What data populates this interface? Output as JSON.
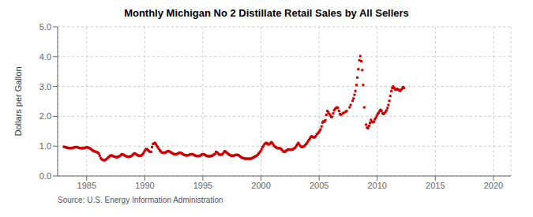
{
  "chart_data": {
    "type": "scatter",
    "title": "Monthly Michigan No 2 Distillate Retail Sales by All Sellers",
    "ylabel": "Dollars per Gallon",
    "annotations": [
      "Source: U.S. Energy Information Administration"
    ],
    "color": "#cc0000",
    "marker": "square",
    "grid": true,
    "xlim": [
      1982.5,
      2021.5
    ],
    "ylim": [
      0.0,
      5.0
    ],
    "xticks": [
      1985,
      1990,
      1995,
      2000,
      2005,
      2010,
      2015,
      2020
    ],
    "yticks": [
      {
        "value": 0.0,
        "label": "0.0"
      },
      {
        "value": 1.0,
        "label": "1.0"
      },
      {
        "value": 2.0,
        "label": "2.0"
      },
      {
        "value": 3.0,
        "label": "3.0"
      },
      {
        "value": 4.0,
        "label": "4.0"
      },
      {
        "value": 5.0,
        "label": "5.0"
      }
    ],
    "x": [
      1983.04,
      1983.12,
      1983.21,
      1983.29,
      1983.37,
      1983.46,
      1983.54,
      1983.62,
      1983.71,
      1983.79,
      1983.88,
      1983.96,
      1984.04,
      1984.12,
      1984.21,
      1984.29,
      1984.37,
      1984.46,
      1984.54,
      1984.62,
      1984.71,
      1984.79,
      1984.88,
      1984.96,
      1985.04,
      1985.12,
      1985.21,
      1985.29,
      1985.37,
      1985.46,
      1985.54,
      1985.62,
      1985.71,
      1985.79,
      1985.88,
      1985.96,
      1986.04,
      1986.12,
      1986.21,
      1986.29,
      1986.37,
      1986.46,
      1986.54,
      1986.62,
      1986.71,
      1986.79,
      1986.88,
      1986.96,
      1987.04,
      1987.12,
      1987.21,
      1987.29,
      1987.37,
      1987.46,
      1987.54,
      1987.62,
      1987.71,
      1987.79,
      1987.88,
      1987.96,
      1988.04,
      1988.12,
      1988.21,
      1988.29,
      1988.37,
      1988.46,
      1988.54,
      1988.62,
      1988.71,
      1988.79,
      1988.88,
      1988.96,
      1989.04,
      1989.12,
      1989.21,
      1989.29,
      1989.37,
      1989.46,
      1989.54,
      1989.62,
      1989.71,
      1989.79,
      1989.88,
      1989.96,
      1990.04,
      1990.12,
      1990.21,
      1990.29,
      1990.37,
      1990.46,
      1990.54,
      1990.62,
      1990.71,
      1990.79,
      1990.88,
      1990.96,
      1991.04,
      1991.12,
      1991.21,
      1991.29,
      1991.37,
      1991.46,
      1991.54,
      1991.62,
      1991.71,
      1991.79,
      1991.88,
      1991.96,
      1992.04,
      1992.12,
      1992.21,
      1992.29,
      1992.37,
      1992.46,
      1992.54,
      1992.62,
      1992.71,
      1992.79,
      1992.88,
      1992.96,
      1993.04,
      1993.12,
      1993.21,
      1993.29,
      1993.37,
      1993.46,
      1993.54,
      1993.62,
      1993.71,
      1993.79,
      1993.88,
      1993.96,
      1994.04,
      1994.12,
      1994.21,
      1994.29,
      1994.37,
      1994.46,
      1994.54,
      1994.62,
      1994.71,
      1994.79,
      1994.88,
      1994.96,
      1995.04,
      1995.12,
      1995.21,
      1995.29,
      1995.37,
      1995.46,
      1995.54,
      1995.62,
      1995.71,
      1995.79,
      1995.88,
      1995.96,
      1996.04,
      1996.12,
      1996.21,
      1996.29,
      1996.37,
      1996.46,
      1996.54,
      1996.62,
      1996.71,
      1996.79,
      1996.88,
      1996.96,
      1997.04,
      1997.12,
      1997.21,
      1997.29,
      1997.37,
      1997.46,
      1997.54,
      1997.62,
      1997.71,
      1997.79,
      1997.88,
      1997.96,
      1998.04,
      1998.12,
      1998.21,
      1998.29,
      1998.37,
      1998.46,
      1998.54,
      1998.62,
      1998.71,
      1998.79,
      1998.88,
      1998.96,
      1999.04,
      1999.12,
      1999.21,
      1999.29,
      1999.37,
      1999.46,
      1999.54,
      1999.62,
      1999.71,
      1999.79,
      1999.88,
      1999.96,
      2000.04,
      2000.12,
      2000.21,
      2000.29,
      2000.37,
      2000.46,
      2000.54,
      2000.62,
      2000.71,
      2000.79,
      2000.88,
      2000.96,
      2001.04,
      2001.12,
      2001.21,
      2001.29,
      2001.37,
      2001.46,
      2001.54,
      2001.62,
      2001.71,
      2001.79,
      2001.88,
      2001.96,
      2002.04,
      2002.12,
      2002.21,
      2002.29,
      2002.37,
      2002.46,
      2002.54,
      2002.62,
      2002.71,
      2002.79,
      2002.88,
      2002.96,
      2003.04,
      2003.12,
      2003.21,
      2003.29,
      2003.37,
      2003.46,
      2003.54,
      2003.62,
      2003.71,
      2003.79,
      2003.88,
      2003.96,
      2004.04,
      2004.12,
      2004.21,
      2004.29,
      2004.37,
      2004.46,
      2004.54,
      2004.62,
      2004.71,
      2004.79,
      2004.88,
      2004.96,
      2005.04,
      2005.12,
      2005.21,
      2005.29,
      2005.37,
      2005.46,
      2005.54,
      2005.62,
      2005.71,
      2005.79,
      2005.88,
      2005.96,
      2006.04,
      2006.12,
      2006.21,
      2006.29,
      2006.37,
      2006.46,
      2006.54,
      2006.62,
      2006.71,
      2006.79,
      2006.88,
      2007.04,
      2007.12,
      2007.29,
      2007.37,
      2007.62,
      2007.71,
      2007.88,
      2007.96,
      2008.04,
      2008.12,
      2008.21,
      2008.29,
      2008.37,
      2008.46,
      2008.54,
      2008.62,
      2008.71,
      2008.79,
      2008.88,
      2009.04,
      2009.12,
      2009.21,
      2009.29,
      2009.37,
      2009.46,
      2009.54,
      2009.62,
      2009.71,
      2009.79,
      2009.88,
      2009.96,
      2010.04,
      2010.12,
      2010.21,
      2010.29,
      2010.37,
      2010.46,
      2010.54,
      2010.62,
      2010.71,
      2010.79,
      2010.88,
      2010.96,
      2011.04,
      2011.12,
      2011.21,
      2011.29,
      2011.37,
      2011.46,
      2011.54,
      2011.62,
      2011.71,
      2011.79,
      2011.88,
      2011.96,
      2012.04,
      2012.12,
      2012.21,
      2012.29
    ],
    "values": [
      0.98,
      0.97,
      0.96,
      0.95,
      0.94,
      0.94,
      0.93,
      0.93,
      0.93,
      0.94,
      0.95,
      0.96,
      0.97,
      0.97,
      0.96,
      0.95,
      0.94,
      0.93,
      0.93,
      0.93,
      0.93,
      0.94,
      0.95,
      0.96,
      0.96,
      0.95,
      0.94,
      0.92,
      0.9,
      0.87,
      0.85,
      0.83,
      0.82,
      0.81,
      0.8,
      0.78,
      0.75,
      0.68,
      0.6,
      0.56,
      0.54,
      0.53,
      0.53,
      0.54,
      0.57,
      0.6,
      0.63,
      0.66,
      0.68,
      0.69,
      0.68,
      0.66,
      0.65,
      0.64,
      0.63,
      0.63,
      0.64,
      0.66,
      0.68,
      0.71,
      0.73,
      0.72,
      0.7,
      0.68,
      0.67,
      0.65,
      0.64,
      0.64,
      0.65,
      0.66,
      0.68,
      0.71,
      0.74,
      0.76,
      0.74,
      0.72,
      0.7,
      0.68,
      0.68,
      0.68,
      0.69,
      0.72,
      0.76,
      0.82,
      0.87,
      0.91,
      0.89,
      0.86,
      0.83,
      0.81,
      0.81,
      0.97,
      1.07,
      1.09,
      1.11,
      1.06,
      1.01,
      0.96,
      0.91,
      0.86,
      0.82,
      0.79,
      0.78,
      0.78,
      0.78,
      0.79,
      0.81,
      0.83,
      0.83,
      0.82,
      0.8,
      0.78,
      0.76,
      0.74,
      0.73,
      0.73,
      0.73,
      0.74,
      0.76,
      0.78,
      0.78,
      0.77,
      0.75,
      0.73,
      0.71,
      0.7,
      0.69,
      0.69,
      0.69,
      0.7,
      0.72,
      0.73,
      0.73,
      0.73,
      0.71,
      0.69,
      0.68,
      0.67,
      0.67,
      0.67,
      0.67,
      0.69,
      0.71,
      0.73,
      0.73,
      0.72,
      0.7,
      0.68,
      0.67,
      0.66,
      0.66,
      0.66,
      0.67,
      0.68,
      0.7,
      0.72,
      0.74,
      0.81,
      0.79,
      0.76,
      0.73,
      0.71,
      0.71,
      0.72,
      0.74,
      0.79,
      0.83,
      0.81,
      0.79,
      0.76,
      0.73,
      0.71,
      0.69,
      0.68,
      0.68,
      0.68,
      0.69,
      0.7,
      0.71,
      0.71,
      0.7,
      0.68,
      0.65,
      0.63,
      0.61,
      0.6,
      0.59,
      0.58,
      0.58,
      0.58,
      0.58,
      0.58,
      0.58,
      0.58,
      0.59,
      0.61,
      0.63,
      0.65,
      0.66,
      0.68,
      0.71,
      0.75,
      0.79,
      0.83,
      0.89,
      0.96,
      1.01,
      1.06,
      1.09,
      1.11,
      1.09,
      1.06,
      1.06,
      1.09,
      1.13,
      1.11,
      1.06,
      1.01,
      0.98,
      0.96,
      0.94,
      0.93,
      0.93,
      0.93,
      0.91,
      0.88,
      0.84,
      0.81,
      0.81,
      0.83,
      0.86,
      0.88,
      0.89,
      0.89,
      0.88,
      0.88,
      0.89,
      0.91,
      0.93,
      0.96,
      1.01,
      1.06,
      1.11,
      1.06,
      1.01,
      0.98,
      0.97,
      0.98,
      1.0,
      1.03,
      1.07,
      1.11,
      1.16,
      1.21,
      1.26,
      1.31,
      1.33,
      1.31,
      1.29,
      1.3,
      1.33,
      1.39,
      1.43,
      1.46,
      1.51,
      1.56,
      1.66,
      1.79,
      1.83,
      1.82,
      1.87,
      2.05,
      2.18,
      2.13,
      2.08,
      2.03,
      1.98,
      1.98,
      2.1,
      2.2,
      2.25,
      2.28,
      2.3,
      2.28,
      2.18,
      2.08,
      2.05,
      2.1,
      2.12,
      2.15,
      2.18,
      2.3,
      2.38,
      2.52,
      2.6,
      2.72,
      2.85,
      3.05,
      3.3,
      3.58,
      3.88,
      4.02,
      3.85,
      3.55,
      3.05,
      2.3,
      1.72,
      1.62,
      1.6,
      1.68,
      1.78,
      1.88,
      1.82,
      1.8,
      1.82,
      1.9,
      1.95,
      2.02,
      2.08,
      2.12,
      2.18,
      2.22,
      2.18,
      2.1,
      2.08,
      2.1,
      2.15,
      2.2,
      2.28,
      2.38,
      2.52,
      2.68,
      2.85,
      2.95,
      3.0,
      2.95,
      2.9,
      2.9,
      2.92,
      2.9,
      2.88,
      2.85,
      2.88,
      2.92,
      2.98,
      2.95
    ]
  }
}
